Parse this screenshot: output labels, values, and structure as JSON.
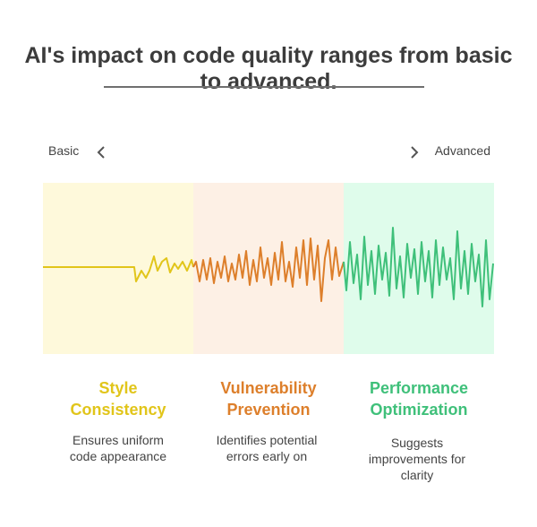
{
  "title": "AI's impact on code quality ranges from basic to advanced.",
  "scale": {
    "left_label": "Basic",
    "right_label": "Advanced"
  },
  "stages": [
    {
      "title_line1": "Style",
      "title_line2": "Consistency",
      "desc_line1": "Ensures uniform",
      "desc_line2": "code appearance",
      "desc_line3": "",
      "color": "#E1C51A",
      "bg": "#FEF9DB"
    },
    {
      "title_line1": "Vulnerability",
      "title_line2": "Prevention",
      "desc_line1": "Identifies potential",
      "desc_line2": "errors early on",
      "desc_line3": "",
      "color": "#DD7F2B",
      "bg": "#FDF0E5"
    },
    {
      "title_line1": "Performance",
      "title_line2": "Optimization",
      "desc_line1": "Suggests",
      "desc_line2": "improvements for",
      "desc_line3": "clarity",
      "color": "#3FC07A",
      "bg": "#DFFCEB"
    }
  ],
  "icons": {
    "left": "chevron-left-icon",
    "right": "chevron-right-icon"
  },
  "colors": {
    "title": "#3C3C3C",
    "rule": "#6F6F6F",
    "chevron": "#555555"
  }
}
